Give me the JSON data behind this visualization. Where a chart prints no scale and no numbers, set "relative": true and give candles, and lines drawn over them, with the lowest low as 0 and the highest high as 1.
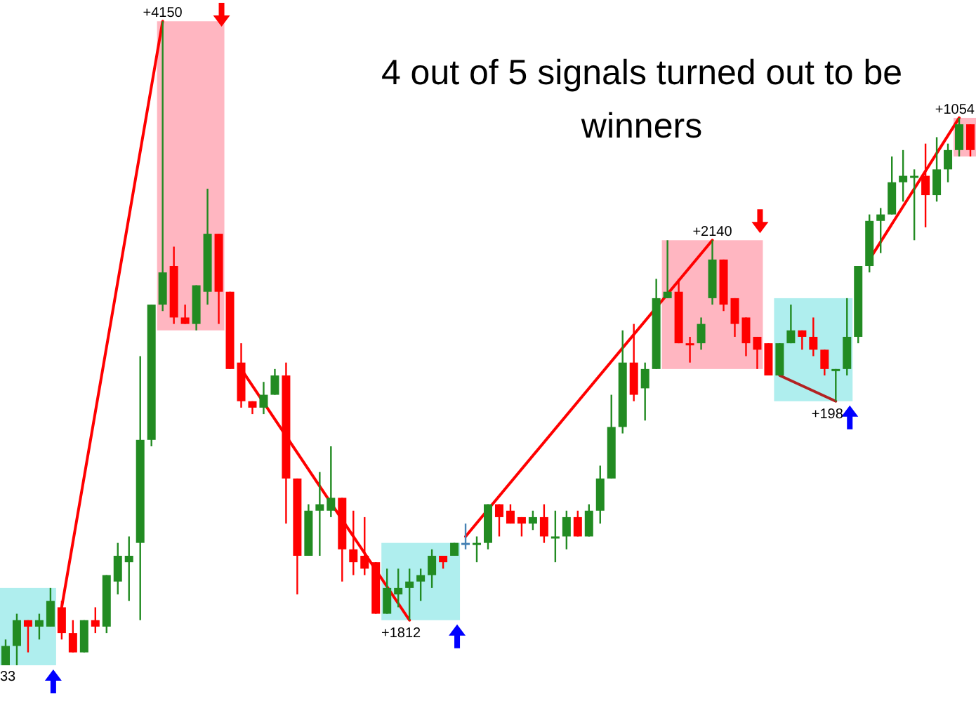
{
  "chart_data": {
    "type": "candlestick",
    "title": "4 out of 5 signals turned out to be winners",
    "relative": true,
    "categories": [
      null,
      null,
      null,
      null,
      null,
      null,
      null,
      null,
      null,
      null,
      null,
      null,
      null,
      null,
      null,
      null,
      null,
      null,
      null,
      null,
      null,
      null,
      null,
      null,
      null,
      null,
      null,
      null,
      null,
      null,
      null,
      null,
      null,
      null,
      null,
      null,
      null,
      null,
      null,
      null,
      null,
      null,
      null,
      null,
      null,
      null,
      null,
      null,
      null,
      null,
      null,
      null,
      null,
      null,
      null,
      null,
      null,
      null,
      null,
      null,
      null,
      null,
      null,
      null,
      null,
      null,
      null,
      null,
      null,
      null,
      null,
      null,
      null,
      null,
      null,
      null,
      null,
      null,
      null,
      null,
      null,
      null,
      null,
      null,
      null,
      null,
      null
    ],
    "series": [
      {
        "type": "candlestick",
        "ohlc": [
          [
            0.0,
            0.04,
            0.0,
            0.03
          ],
          [
            0.03,
            0.08,
            0.0,
            0.07
          ],
          [
            0.07,
            0.07,
            0.02,
            0.06
          ],
          [
            0.06,
            0.08,
            0.04,
            0.07
          ],
          [
            0.06,
            0.12,
            0.06,
            0.1
          ],
          [
            0.09,
            0.1,
            0.04,
            0.05
          ],
          [
            0.05,
            0.07,
            0.02,
            0.02
          ],
          [
            0.02,
            0.07,
            0.02,
            0.07
          ],
          [
            0.07,
            0.09,
            0.05,
            0.06
          ],
          [
            0.06,
            0.14,
            0.05,
            0.14
          ],
          [
            0.13,
            0.19,
            0.11,
            0.17
          ],
          [
            0.16,
            0.2,
            0.1,
            0.17
          ],
          [
            0.19,
            0.48,
            0.07,
            0.35
          ],
          [
            0.35,
            0.56,
            0.34,
            0.56
          ],
          [
            0.56,
            1.0,
            0.55,
            0.61
          ],
          [
            0.62,
            0.65,
            0.53,
            0.54
          ],
          [
            0.54,
            0.56,
            0.53,
            0.53
          ],
          [
            0.53,
            0.59,
            0.52,
            0.59
          ],
          [
            0.58,
            0.74,
            0.56,
            0.67
          ],
          [
            0.67,
            0.67,
            0.53,
            0.58
          ],
          [
            0.58,
            0.58,
            0.46,
            0.46
          ],
          [
            0.47,
            0.5,
            0.4,
            0.41
          ],
          [
            0.41,
            0.41,
            0.39,
            0.4
          ],
          [
            0.4,
            0.44,
            0.39,
            0.42
          ],
          [
            0.42,
            0.46,
            0.42,
            0.45
          ],
          [
            0.45,
            0.47,
            0.22,
            0.29
          ],
          [
            0.29,
            0.29,
            0.11,
            0.17
          ],
          [
            0.17,
            0.25,
            0.17,
            0.24
          ],
          [
            0.24,
            0.3,
            0.17,
            0.25
          ],
          [
            0.24,
            0.34,
            0.23,
            0.26
          ],
          [
            0.26,
            0.26,
            0.13,
            0.18
          ],
          [
            0.18,
            0.24,
            0.14,
            0.16
          ],
          [
            0.17,
            0.23,
            0.14,
            0.15
          ],
          [
            0.16,
            0.16,
            0.08,
            0.08
          ],
          [
            0.08,
            0.15,
            0.08,
            0.12
          ],
          [
            0.11,
            0.15,
            0.09,
            0.12
          ],
          [
            0.12,
            0.15,
            0.07,
            0.13
          ],
          [
            0.13,
            0.15,
            0.1,
            0.14
          ],
          [
            0.14,
            0.18,
            0.12,
            0.17
          ],
          [
            0.17,
            0.17,
            0.15,
            0.16
          ],
          [
            0.17,
            0.19,
            0.17,
            0.19
          ],
          [
            0.19,
            0.22,
            0.18,
            0.19
          ],
          [
            0.19,
            0.2,
            0.16,
            0.19
          ],
          [
            0.19,
            0.25,
            0.18,
            0.25
          ],
          [
            0.25,
            0.25,
            0.2,
            0.23
          ],
          [
            0.24,
            0.25,
            0.22,
            0.22
          ],
          [
            0.23,
            0.23,
            0.2,
            0.22
          ],
          [
            0.22,
            0.24,
            0.21,
            0.23
          ],
          [
            0.23,
            0.25,
            0.19,
            0.2
          ],
          [
            0.2,
            0.24,
            0.16,
            0.2
          ],
          [
            0.2,
            0.24,
            0.18,
            0.23
          ],
          [
            0.23,
            0.24,
            0.2,
            0.2
          ],
          [
            0.2,
            0.25,
            0.2,
            0.24
          ],
          [
            0.24,
            0.31,
            0.22,
            0.29
          ],
          [
            0.29,
            0.42,
            0.29,
            0.37
          ],
          [
            0.37,
            0.52,
            0.36,
            0.47
          ],
          [
            0.47,
            0.53,
            0.41,
            0.42
          ],
          [
            0.43,
            0.47,
            0.38,
            0.46
          ],
          [
            0.46,
            0.6,
            0.46,
            0.57
          ],
          [
            0.57,
            0.66,
            0.57,
            0.58
          ],
          [
            0.58,
            0.6,
            0.5,
            0.5
          ],
          [
            0.5,
            0.51,
            0.47,
            0.5
          ],
          [
            0.5,
            0.54,
            0.49,
            0.53
          ],
          [
            0.57,
            0.66,
            0.56,
            0.63
          ],
          [
            0.63,
            0.63,
            0.55,
            0.56
          ],
          [
            0.57,
            0.57,
            0.51,
            0.53
          ],
          [
            0.54,
            0.54,
            0.48,
            0.5
          ],
          [
            0.51,
            0.51,
            0.46,
            0.49
          ],
          [
            0.5,
            0.5,
            0.45,
            0.45
          ],
          [
            0.45,
            0.5,
            0.45,
            0.5
          ],
          [
            0.5,
            0.56,
            0.5,
            0.52
          ],
          [
            0.52,
            0.52,
            0.49,
            0.51
          ],
          [
            0.51,
            0.54,
            0.48,
            0.49
          ],
          [
            0.49,
            0.49,
            0.45,
            0.46
          ],
          [
            0.46,
            0.46,
            0.41,
            0.46
          ],
          [
            0.46,
            0.57,
            0.45,
            0.51
          ],
          [
            0.51,
            0.62,
            0.5,
            0.62
          ],
          [
            0.62,
            0.7,
            0.61,
            0.69
          ],
          [
            0.69,
            0.71,
            0.64,
            0.7
          ],
          [
            0.7,
            0.79,
            0.7,
            0.75
          ],
          [
            0.75,
            0.8,
            0.72,
            0.76
          ],
          [
            0.76,
            0.77,
            0.66,
            0.76
          ],
          [
            0.76,
            0.81,
            0.68,
            0.73
          ],
          [
            0.73,
            0.82,
            0.72,
            0.77
          ],
          [
            0.77,
            0.81,
            0.75,
            0.8
          ],
          [
            0.8,
            0.85,
            0.79,
            0.84
          ],
          [
            0.84,
            0.84,
            0.79,
            0.8
          ]
        ],
        "colors": [
          "#228b22",
          "#228b22",
          "#ff0000",
          "#228b22",
          "#228b22",
          "#ff0000",
          "#ff0000",
          "#228b22",
          "#ff0000",
          "#228b22",
          "#228b22",
          "#228b22",
          "#228b22",
          "#228b22",
          "#228b22",
          "#ff0000",
          "#ff0000",
          "#228b22",
          "#228b22",
          "#ff0000",
          "#ff0000",
          "#ff0000",
          "#ff0000",
          "#228b22",
          "#228b22",
          "#ff0000",
          "#ff0000",
          "#228b22",
          "#228b22",
          "#228b22",
          "#ff0000",
          "#ff0000",
          "#ff0000",
          "#ff0000",
          "#228b22",
          "#228b22",
          "#228b22",
          "#228b22",
          "#228b22",
          "#ff0000",
          "#228b22",
          "#4682b4",
          "#228b22",
          "#228b22",
          "#ff0000",
          "#ff0000",
          "#ff0000",
          "#228b22",
          "#ff0000",
          "#228b22",
          "#228b22",
          "#ff0000",
          "#228b22",
          "#228b22",
          "#228b22",
          "#228b22",
          "#ff0000",
          "#228b22",
          "#228b22",
          "#228b22",
          "#ff0000",
          "#ff0000",
          "#228b22",
          "#228b22",
          "#ff0000",
          "#ff0000",
          "#ff0000",
          "#ff0000",
          "#ff0000",
          "#228b22",
          "#228b22",
          "#ff0000",
          "#ff0000",
          "#ff0000",
          "#228b22",
          "#228b22",
          "#228b22",
          "#228b22",
          "#228b22",
          "#228b22",
          "#228b22",
          "#228b22",
          "#ff0000",
          "#228b22",
          "#228b22",
          "#228b22",
          "#ff0000"
        ]
      },
      {
        "type": "line",
        "color": "#ff0000",
        "values": [
          null,
          null,
          null,
          null,
          null,
          0.09,
          null,
          null,
          null,
          null,
          null,
          null,
          null,
          null,
          1.0,
          null,
          null,
          null,
          null,
          null,
          null,
          null,
          null,
          null,
          null,
          null,
          null,
          null,
          null,
          null,
          null,
          null,
          null,
          null,
          null,
          null,
          null,
          null,
          null,
          null,
          null,
          null,
          null,
          null,
          null,
          null,
          null,
          null,
          null,
          null,
          null,
          null,
          null,
          null,
          null,
          null,
          null,
          null,
          null,
          null,
          null,
          null,
          null,
          null,
          null,
          null,
          null,
          null,
          null,
          null,
          null,
          null,
          null,
          null,
          null,
          null,
          null,
          null,
          null,
          null,
          null,
          null,
          null,
          null,
          null,
          null,
          null
        ]
      },
      {
        "type": "line",
        "color": "#ff0000",
        "values": [
          null,
          null,
          null,
          null,
          null,
          null,
          null,
          null,
          null,
          null,
          null,
          null,
          null,
          null,
          null,
          null,
          null,
          null,
          null,
          null,
          null,
          0.46,
          null,
          null,
          null,
          null,
          null,
          null,
          null,
          null,
          null,
          null,
          null,
          null,
          null,
          null,
          0.07,
          null,
          null,
          null,
          null,
          null,
          null,
          null,
          null,
          null,
          null,
          null,
          null,
          null,
          null,
          null,
          null,
          null,
          null,
          null,
          null,
          null,
          null,
          null,
          null,
          null,
          null,
          null,
          null,
          null,
          null,
          null,
          null,
          null,
          null,
          null,
          null,
          null,
          null,
          null,
          null,
          null,
          null,
          null,
          null,
          null,
          null,
          null,
          null,
          null,
          null
        ]
      },
      {
        "type": "line",
        "color": "#ff0000",
        "values": [
          null,
          null,
          null,
          null,
          null,
          null,
          null,
          null,
          null,
          null,
          null,
          null,
          null,
          null,
          null,
          null,
          null,
          null,
          null,
          null,
          null,
          null,
          null,
          null,
          null,
          null,
          null,
          null,
          null,
          null,
          null,
          null,
          null,
          null,
          null,
          null,
          null,
          null,
          null,
          null,
          null,
          0.2,
          null,
          null,
          null,
          null,
          null,
          null,
          null,
          null,
          null,
          null,
          null,
          null,
          null,
          null,
          null,
          null,
          null,
          null,
          null,
          null,
          null,
          0.66,
          null,
          null,
          null,
          null,
          null,
          null,
          null,
          null,
          null,
          null,
          null,
          null,
          null,
          null,
          null,
          null,
          null,
          null,
          null,
          null,
          null,
          null,
          null
        ]
      },
      {
        "type": "line",
        "color": "#b22222",
        "values": [
          null,
          null,
          null,
          null,
          null,
          null,
          null,
          null,
          null,
          null,
          null,
          null,
          null,
          null,
          null,
          null,
          null,
          null,
          null,
          null,
          null,
          null,
          null,
          null,
          null,
          null,
          null,
          null,
          null,
          null,
          null,
          null,
          null,
          null,
          null,
          null,
          null,
          null,
          null,
          null,
          null,
          null,
          null,
          null,
          null,
          null,
          null,
          null,
          null,
          null,
          null,
          null,
          null,
          null,
          null,
          null,
          null,
          null,
          null,
          null,
          null,
          null,
          null,
          null,
          null,
          null,
          null,
          null,
          null,
          0.45,
          null,
          null,
          null,
          null,
          0.41,
          null,
          null,
          null,
          null,
          null,
          null,
          null,
          null,
          null,
          null,
          null,
          null
        ]
      },
      {
        "type": "line",
        "color": "#ff0000",
        "values": [
          null,
          null,
          null,
          null,
          null,
          null,
          null,
          null,
          null,
          null,
          null,
          null,
          null,
          null,
          null,
          null,
          null,
          null,
          null,
          null,
          null,
          null,
          null,
          null,
          null,
          null,
          null,
          null,
          null,
          null,
          null,
          null,
          null,
          null,
          null,
          null,
          null,
          null,
          null,
          null,
          null,
          null,
          null,
          null,
          null,
          null,
          null,
          null,
          null,
          null,
          null,
          null,
          null,
          null,
          null,
          null,
          null,
          null,
          null,
          null,
          null,
          null,
          null,
          null,
          null,
          null,
          null,
          null,
          null,
          null,
          null,
          null,
          null,
          null,
          null,
          null,
          null,
          0.63,
          null,
          null,
          null,
          null,
          null,
          null,
          null,
          0.85,
          null
        ]
      }
    ],
    "annotations": [
      "33",
      "+4150",
      "+1812",
      "+2140",
      "+198",
      "+1054"
    ]
  }
}
